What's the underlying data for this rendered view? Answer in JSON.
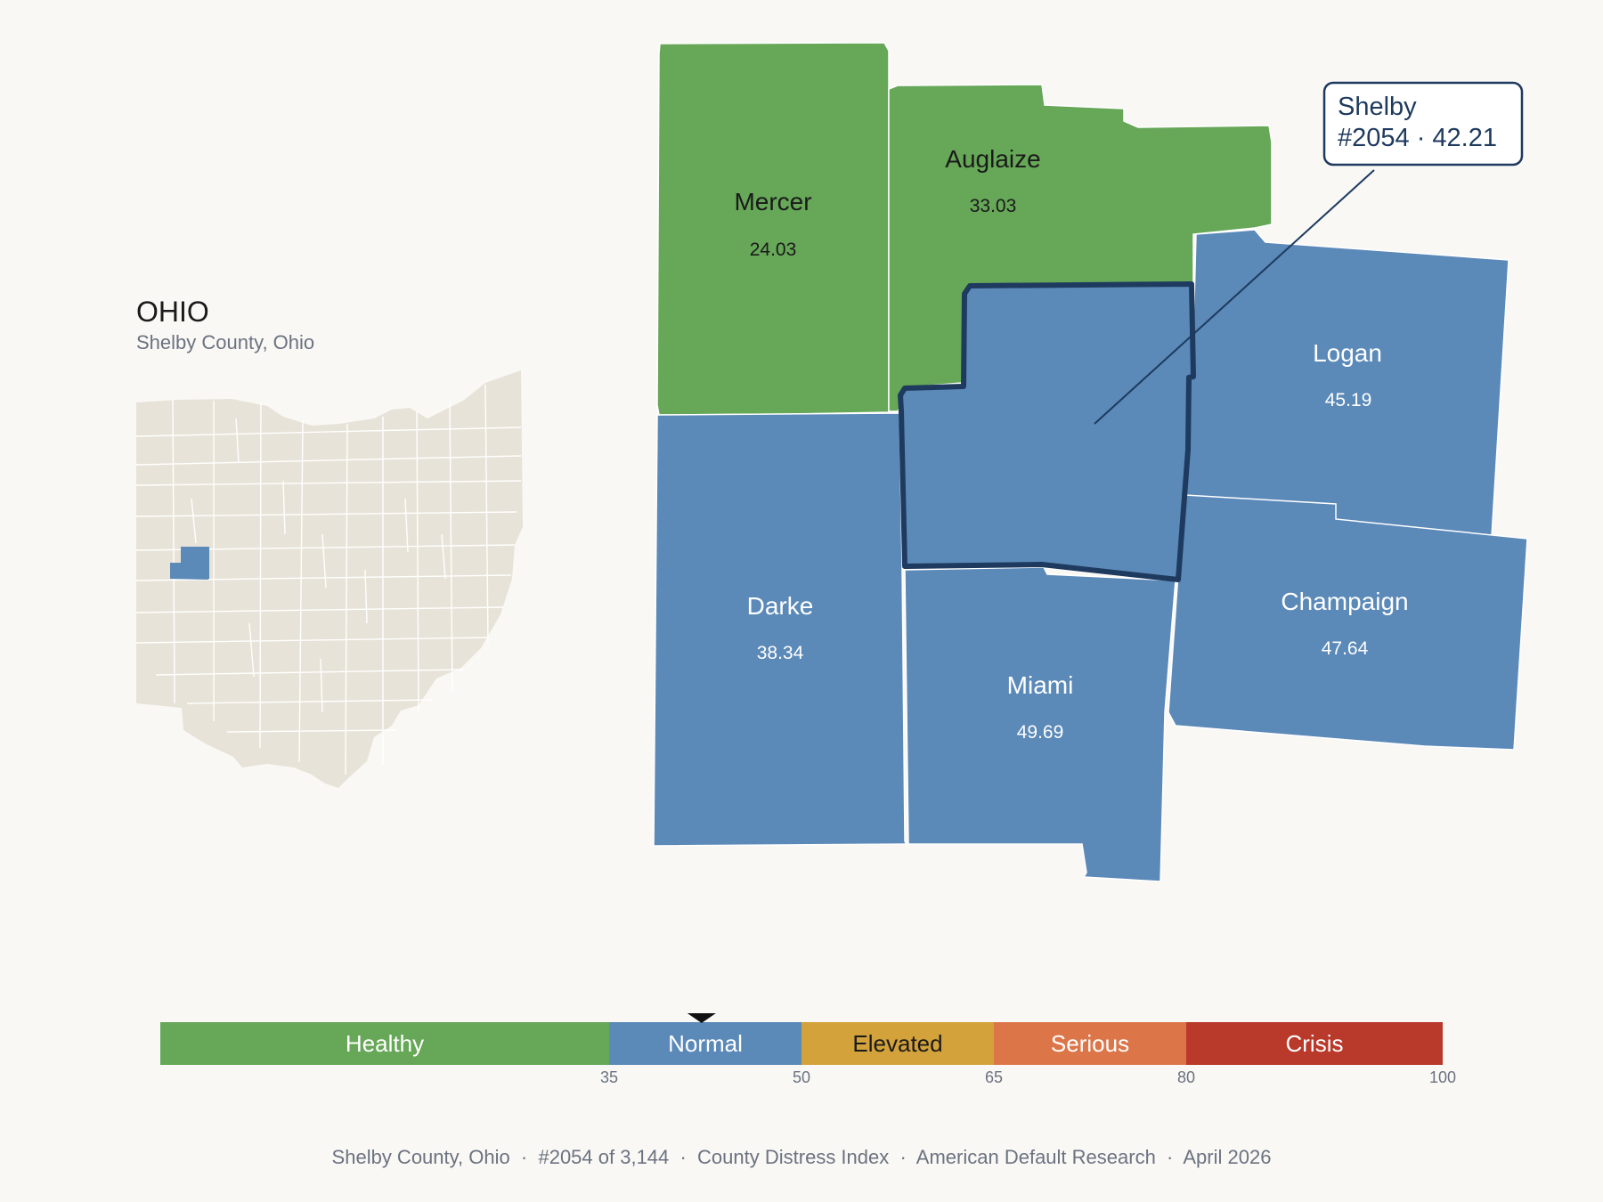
{
  "state": {
    "title": "OHIO",
    "subtitle": "Shelby County, Ohio"
  },
  "colors": {
    "healthy": "#66a758",
    "normal": "#5b89b8",
    "elevated": "#d4a23a",
    "serious": "#dc7649",
    "crisis": "#b9392b",
    "outline": "#1e3a5f",
    "inset_fill": "#e8e3d8"
  },
  "counties": [
    {
      "name": "Mercer",
      "value": "24.03",
      "category": "healthy"
    },
    {
      "name": "Auglaize",
      "value": "33.03",
      "category": "healthy"
    },
    {
      "name": "Logan",
      "value": "45.19",
      "category": "normal"
    },
    {
      "name": "Darke",
      "value": "38.34",
      "category": "normal"
    },
    {
      "name": "Miami",
      "value": "49.69",
      "category": "normal"
    },
    {
      "name": "Champaign",
      "value": "47.64",
      "category": "normal"
    },
    {
      "name": "Shelby",
      "value": "42.21",
      "category": "normal",
      "highlighted": true
    }
  ],
  "callout": {
    "line1": "Shelby",
    "line2": "#2054 · 42.21"
  },
  "legend": {
    "segments": [
      {
        "label": "Healthy",
        "from": 0,
        "to": 35,
        "color": "#66a758",
        "text_color": "#ffffff"
      },
      {
        "label": "Normal",
        "from": 35,
        "to": 50,
        "color": "#5b89b8",
        "text_color": "#ffffff"
      },
      {
        "label": "Elevated",
        "from": 50,
        "to": 65,
        "color": "#d4a23a",
        "text_color": "#1a1a1a"
      },
      {
        "label": "Serious",
        "from": 65,
        "to": 80,
        "color": "#dc7649",
        "text_color": "#ffffff"
      },
      {
        "label": "Crisis",
        "from": 80,
        "to": 100,
        "color": "#b9392b",
        "text_color": "#ffffff"
      }
    ],
    "ticks": [
      "35",
      "50",
      "65",
      "80",
      "100"
    ],
    "marker_value": 42.21
  },
  "footer": {
    "text": "Shelby County, Ohio  ·  #2054 of 3,144  ·  County Distress Index  ·  American Default Research  ·  April 2026"
  }
}
